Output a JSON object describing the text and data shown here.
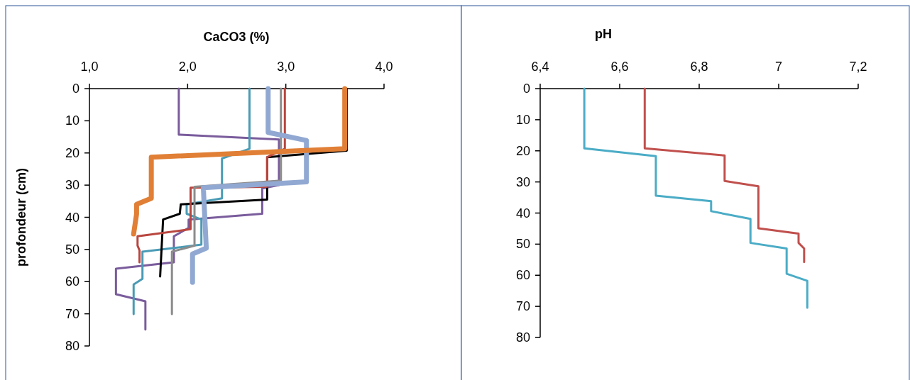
{
  "chart_data": [
    {
      "type": "line",
      "xlabel": "CaCO3 (%)",
      "ylabel": "profondeur (cm)",
      "xlim": [
        1,
        4
      ],
      "xticks": [
        {
          "value": 1,
          "label": "1,0"
        },
        {
          "value": 2,
          "label": "2,0"
        },
        {
          "value": 3,
          "label": "3,0"
        },
        {
          "value": 4,
          "label": "4,0"
        }
      ],
      "ylim": [
        80,
        0
      ],
      "yticks": [
        0,
        10,
        20,
        30,
        40,
        50,
        60,
        70,
        80
      ],
      "series": [
        {
          "color": "#7a5c9c",
          "x": [
            1.91,
            1.91,
            2.93,
            2.93,
            2.76,
            2.76,
            2.01,
            2.01,
            1.86,
            1.86,
            1.27,
            1.27,
            1.57,
            1.57
          ],
          "values": [
            0,
            14.3,
            15.8,
            30,
            31,
            38.9,
            40.7,
            43.3,
            45.9,
            54,
            56,
            63.9,
            66.1,
            74.9
          ]
        },
        {
          "color": "#4a9bb5",
          "x": [
            2.63,
            2.63,
            2.35,
            2.35,
            1.99,
            1.99,
            2.14,
            2.14,
            1.54,
            1.54,
            1.45,
            1.45
          ],
          "values": [
            0,
            18.7,
            21.7,
            34.1,
            36,
            38.9,
            40.7,
            48.5,
            50.7,
            59.1,
            60.9,
            70.1
          ]
        },
        {
          "color": "#000000",
          "x": [
            3.62,
            3.62,
            2.81,
            2.81,
            1.93,
            1.92,
            1.75,
            1.72
          ],
          "values": [
            0,
            19.3,
            21.3,
            34.5,
            36,
            38.9,
            40.7,
            58.4
          ]
        },
        {
          "color": "#b8463f",
          "x": [
            2.99,
            2.99,
            2.81,
            2.81,
            2.03,
            2.03,
            1.49,
            1.49,
            1.51,
            1.51
          ],
          "values": [
            0,
            18.7,
            21.3,
            30.5,
            30.8,
            43.7,
            45.9,
            48.8,
            50.3,
            54
          ]
        },
        {
          "color": "#8c8c8c",
          "x": [
            2.95,
            2.95,
            2.07,
            2.07,
            1.84,
            1.84
          ],
          "values": [
            0,
            28.6,
            30.5,
            48.8,
            50.7,
            70.1
          ]
        },
        {
          "color": "#91a9d2",
          "x": [
            2.82,
            2.82,
            3.21,
            3.21,
            2.16,
            2.19,
            2.05,
            2.05
          ],
          "values": [
            0,
            13.6,
            16.1,
            29,
            30.8,
            49.6,
            51.4,
            60.2
          ]
        },
        {
          "color": "#e07f35",
          "x": [
            3.6,
            3.6,
            1.63,
            1.63,
            1.48,
            1.48,
            1.45
          ],
          "values": [
            0,
            18.7,
            21.3,
            34.1,
            36,
            39,
            45.2
          ]
        }
      ]
    },
    {
      "type": "line",
      "xlabel": "pH",
      "xlim": [
        6.4,
        7.2
      ],
      "xticks": [
        {
          "value": 6.4,
          "label": "6,4"
        },
        {
          "value": 6.6,
          "label": "6,6"
        },
        {
          "value": 6.8,
          "label": "6,8"
        },
        {
          "value": 7,
          "label": "7"
        },
        {
          "value": 7.2,
          "label": "7,2"
        }
      ],
      "ylim": [
        80,
        0
      ],
      "yticks": [
        0,
        10,
        20,
        30,
        40,
        50,
        60,
        70,
        80
      ],
      "series": [
        {
          "color": "#4bacc6",
          "x": [
            6.511,
            6.511,
            6.691,
            6.691,
            6.83,
            6.83,
            6.929,
            6.929,
            7.02,
            7.02,
            7.072,
            7.072
          ],
          "values": [
            0,
            19.2,
            21.7,
            34.4,
            36.2,
            39.4,
            41.9,
            49.6,
            51.4,
            59.5,
            61.8,
            70.4
          ]
        },
        {
          "color": "#c0504d",
          "x": [
            6.663,
            6.663,
            6.864,
            6.864,
            6.949,
            6.949,
            7.05,
            7.05,
            7.064,
            7.064
          ],
          "values": [
            0,
            19.2,
            21.5,
            29.7,
            31.4,
            44.9,
            46.6,
            49.6,
            51.4,
            55.7
          ]
        }
      ]
    }
  ]
}
